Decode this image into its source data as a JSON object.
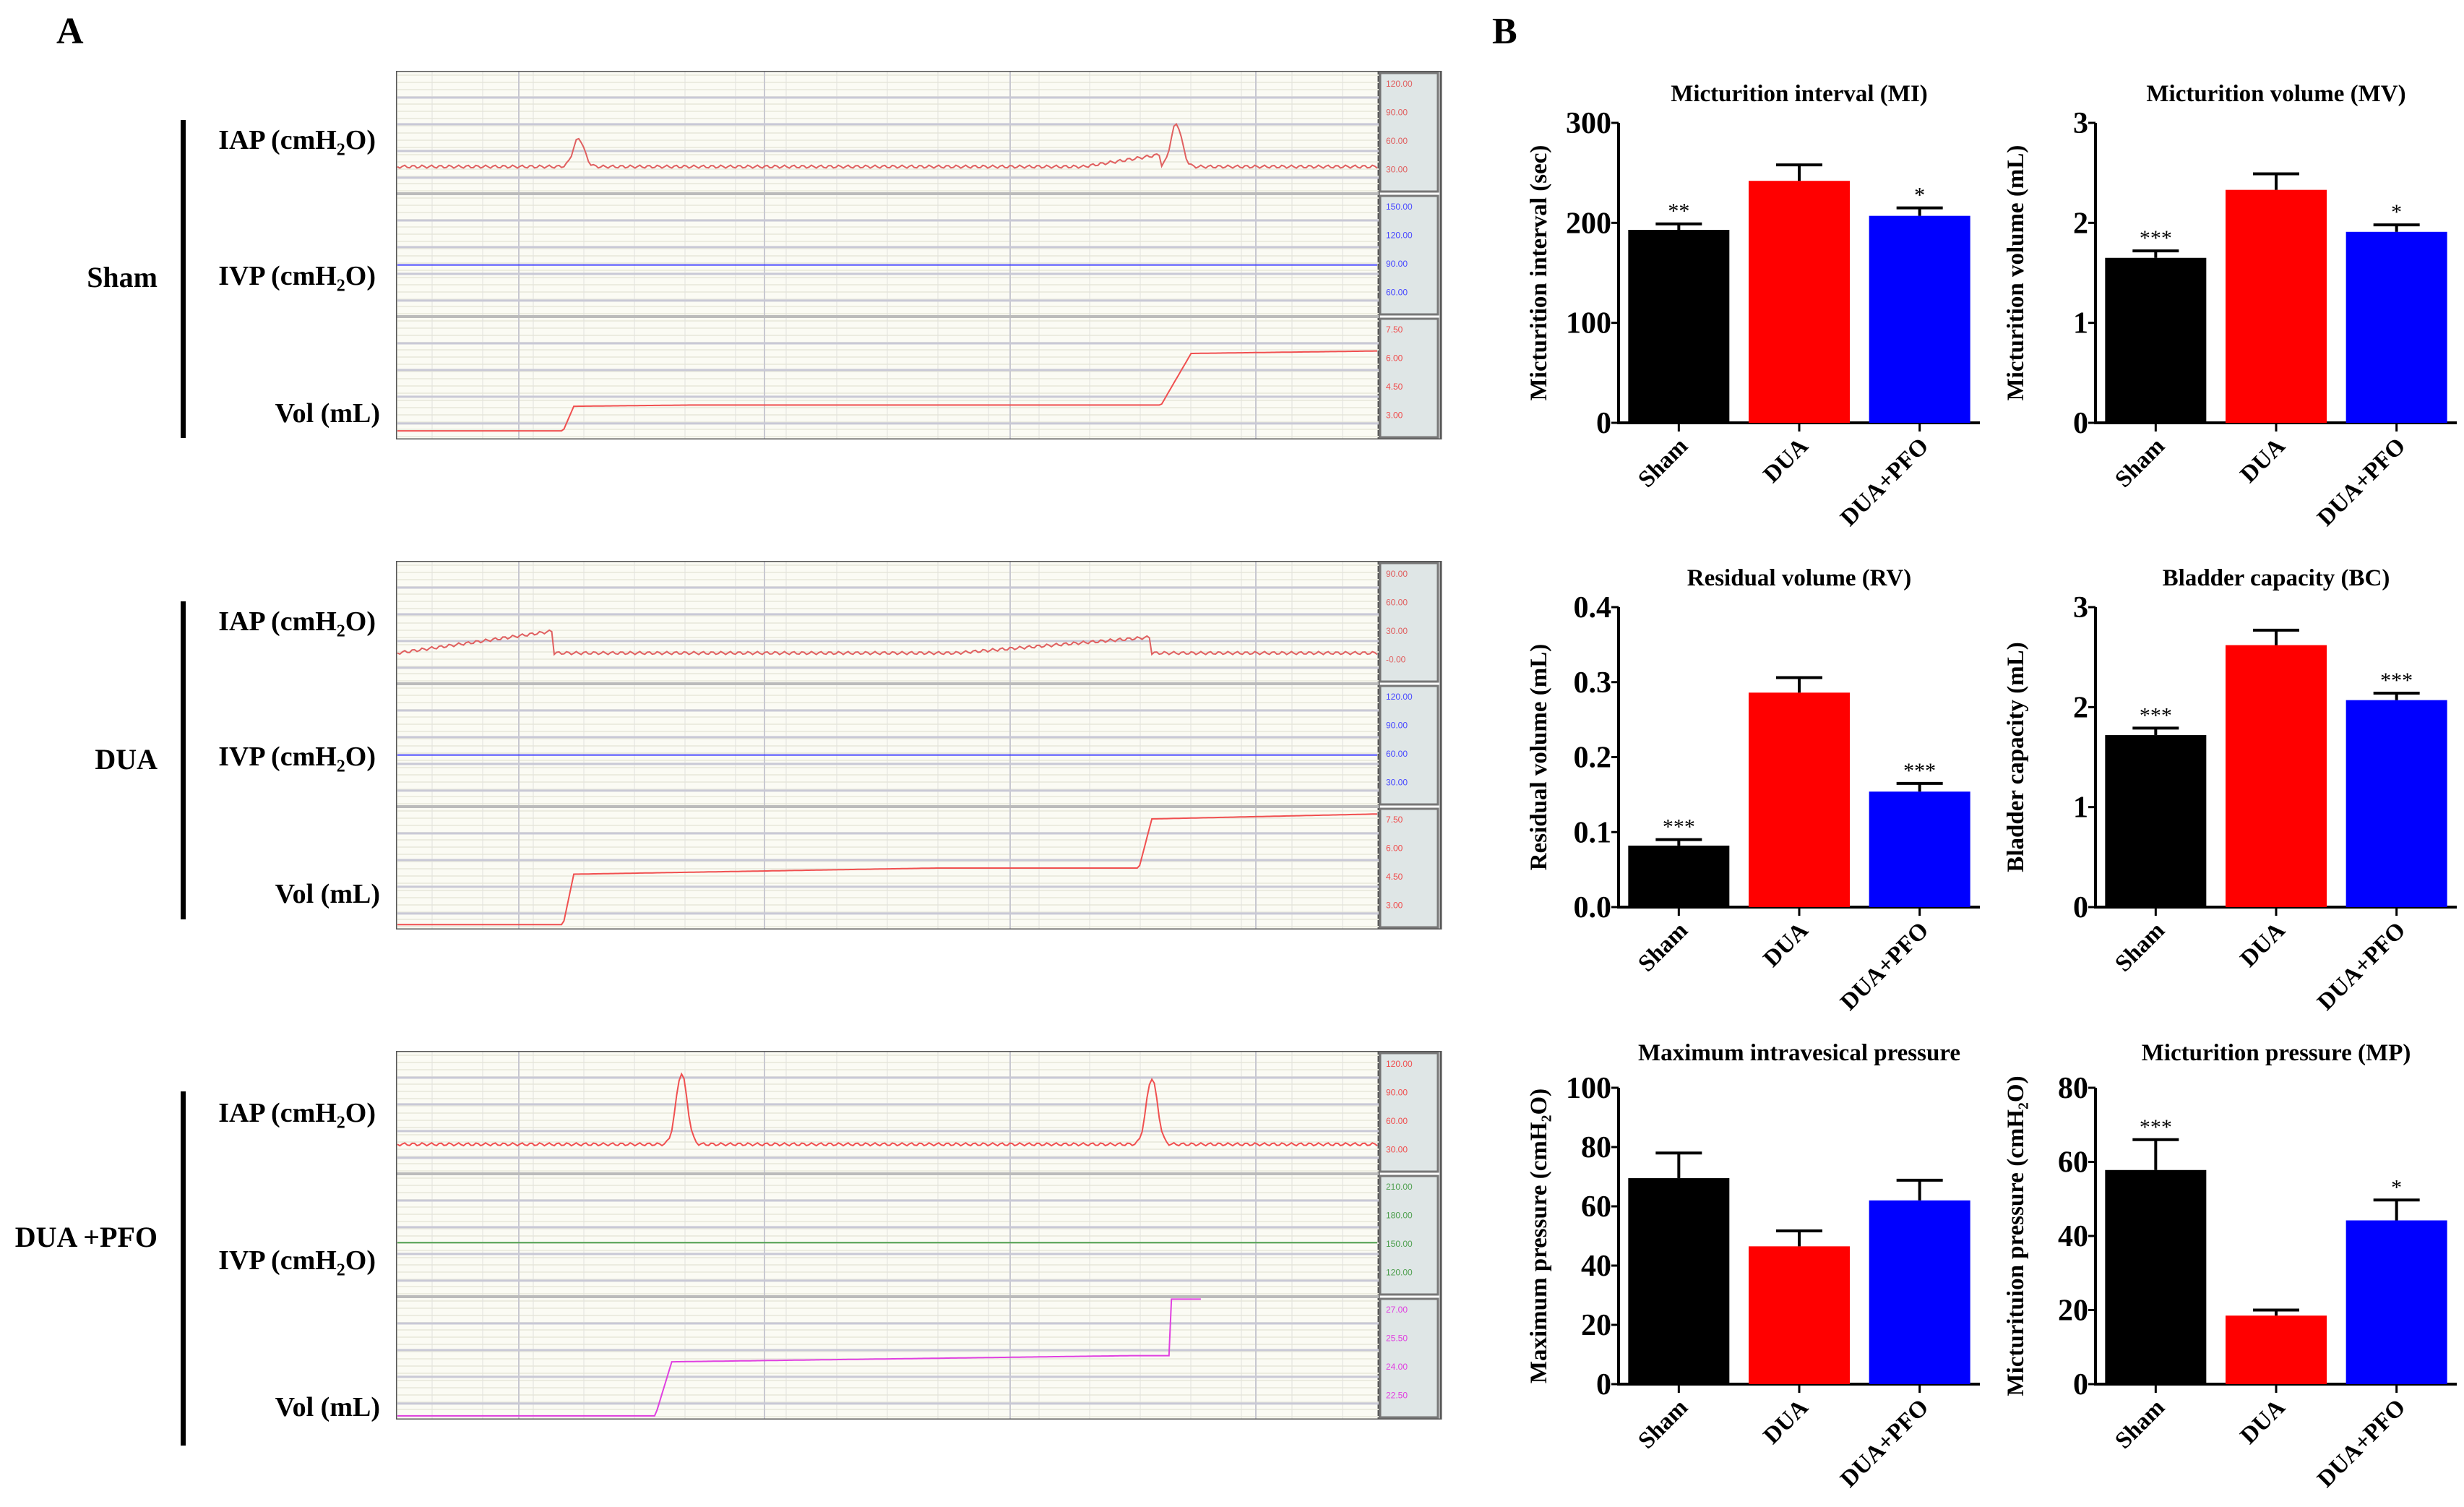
{
  "panel_a": {
    "letter": "A",
    "groups": [
      {
        "name": "Sham",
        "channels": [
          {
            "label_main": "IAP (cmH",
            "label_sub": "2",
            "label_end": "O)",
            "scale_labels": [
              "120.00",
              "90.00",
              "60.00",
              "30.00"
            ],
            "trace_color": "#e06060"
          },
          {
            "label_main": "IVP (cmH",
            "label_sub": "2",
            "label_end": "O)",
            "scale_labels": [
              "150.00",
              "120.00",
              "90.00",
              "60.00"
            ],
            "trace_color": "#4a4aff"
          },
          {
            "label_main": "Vol (mL)",
            "label_sub": "",
            "label_end": "",
            "scale_labels": [
              "7.50",
              "6.00",
              "4.50",
              "3.00"
            ],
            "trace_color": "#f05050"
          }
        ]
      },
      {
        "name": "DUA",
        "channels": [
          {
            "label_main": "IAP (cmH",
            "label_sub": "2",
            "label_end": "O)",
            "scale_labels": [
              "90.00",
              "60.00",
              "30.00",
              "-0.00"
            ],
            "trace_color": "#e06060"
          },
          {
            "label_main": "IVP (cmH",
            "label_sub": "2",
            "label_end": "O)",
            "scale_labels": [
              "120.00",
              "90.00",
              "60.00",
              "30.00"
            ],
            "trace_color": "#4a4aff"
          },
          {
            "label_main": "Vol (mL)",
            "label_sub": "",
            "label_end": "",
            "scale_labels": [
              "7.50",
              "6.00",
              "4.50",
              "3.00"
            ],
            "trace_color": "#f05050"
          }
        ]
      },
      {
        "name": "DUA +PFO",
        "channels": [
          {
            "label_main": "IAP (cmH",
            "label_sub": "2",
            "label_end": "O)",
            "scale_labels": [
              "120.00",
              "90.00",
              "60.00",
              "30.00"
            ],
            "trace_color": "#f05050"
          },
          {
            "label_main": "IVP (cmH",
            "label_sub": "2",
            "label_end": "O)",
            "scale_labels": [
              "210.00",
              "180.00",
              "150.00",
              "120.00"
            ],
            "trace_color": "#50a050"
          },
          {
            "label_main": "Vol (mL)",
            "label_sub": "",
            "label_end": "",
            "scale_labels": [
              "27.00",
              "25.50",
              "24.00",
              "22.50"
            ],
            "trace_color": "#e040e0"
          }
        ]
      }
    ]
  },
  "panel_b": {
    "letter": "B"
  },
  "colors": {
    "Sham": "#000000",
    "DUA": "#ff0000",
    "DUA+PFO": "#0000ff"
  },
  "chart_data": [
    {
      "type": "bar",
      "title": "Micturition interval (MI)",
      "ylabel": "Micturition interval (sec)",
      "categories": [
        "Sham",
        "DUA",
        "DUA+PFO"
      ],
      "values": [
        193,
        242,
        207
      ],
      "errors": [
        6,
        16,
        8
      ],
      "significance": [
        "**",
        "",
        "*"
      ],
      "ylim": [
        0,
        300
      ],
      "yticks": [
        "0",
        "100",
        "200",
        "300"
      ]
    },
    {
      "type": "bar",
      "title": "Micturition volume (MV)",
      "ylabel": "Micturition volume (mL)",
      "categories": [
        "Sham",
        "DUA",
        "DUA+PFO"
      ],
      "values": [
        1.65,
        2.33,
        1.91
      ],
      "errors": [
        0.07,
        0.16,
        0.07
      ],
      "significance": [
        "***",
        "",
        "*"
      ],
      "ylim": [
        0,
        3
      ],
      "yticks": [
        "0",
        "1",
        "2",
        "3"
      ]
    },
    {
      "type": "bar",
      "title": "Residual volume (RV)",
      "ylabel": "Residual volume (mL)",
      "categories": [
        "Sham",
        "DUA",
        "DUA+PFO"
      ],
      "values": [
        0.082,
        0.286,
        0.154
      ],
      "errors": [
        0.008,
        0.02,
        0.011
      ],
      "significance": [
        "***",
        "",
        "***"
      ],
      "ylim": [
        0,
        0.4
      ],
      "yticks": [
        "0.0",
        "0.1",
        "0.2",
        "0.3",
        "0.4"
      ]
    },
    {
      "type": "bar",
      "title": "Bladder capacity (BC)",
      "ylabel": "Bladder capacity (mL)",
      "categories": [
        "Sham",
        "DUA",
        "DUA+PFO"
      ],
      "values": [
        1.72,
        2.62,
        2.07
      ],
      "errors": [
        0.07,
        0.15,
        0.07
      ],
      "significance": [
        "***",
        "",
        "***"
      ],
      "ylim": [
        0,
        3
      ],
      "yticks": [
        "0",
        "1",
        "2",
        "3"
      ]
    },
    {
      "type": "bar",
      "title": "Maximum intravesical pressure",
      "ylabel": "Maximum pressure (cmH₂O)",
      "categories": [
        "Sham",
        "DUA",
        "DUA+PFO"
      ],
      "values": [
        69.5,
        46.5,
        62
      ],
      "errors": [
        8.5,
        5.2,
        6.8
      ],
      "significance": [
        "",
        "",
        ""
      ],
      "ylim": [
        0,
        100
      ],
      "yticks": [
        "0",
        "20",
        "40",
        "60",
        "80",
        "100"
      ]
    },
    {
      "type": "bar",
      "title": "Micturition pressure (MP)",
      "ylabel": "Micturituion pressure (cmH₂O)",
      "categories": [
        "Sham",
        "DUA",
        "DUA+PFO"
      ],
      "values": [
        57.8,
        18.5,
        44.2
      ],
      "errors": [
        8.2,
        1.5,
        5.5
      ],
      "significance": [
        "***",
        "",
        "*"
      ],
      "ylim": [
        0,
        80
      ],
      "yticks": [
        "0",
        "20",
        "40",
        "60",
        "80"
      ]
    }
  ]
}
